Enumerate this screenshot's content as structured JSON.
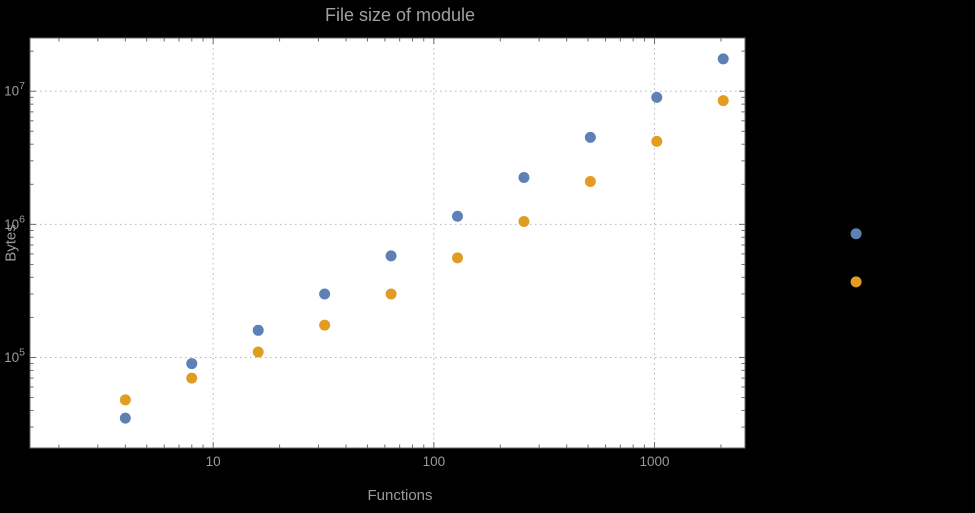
{
  "figure": {
    "background_color": "#000000"
  },
  "chart_data": {
    "type": "scatter",
    "title": "File size of module",
    "xlabel": "Functions",
    "ylabel": "Bytes",
    "x_scale": "log10",
    "y_scale": "log10",
    "grid": "dotted gray lines at powers of ten, on",
    "legend": "none",
    "plot_bg": "#ffffff",
    "frame_color": "#6a6a6a",
    "grid_color": "#b5b5b5",
    "tick_label_color": "#9a9a9a",
    "title_color": "#a0a0a0",
    "axis_label_color": "#9a9a9a",
    "point_radius": 5.5,
    "xlim_log10": [
      0.17,
      3.41
    ],
    "ylim_log10": [
      4.32,
      7.4
    ],
    "x_ticks": [
      {
        "value": 10,
        "label": "10"
      },
      {
        "value": 100,
        "label": "100"
      },
      {
        "value": 1000,
        "label": "1000"
      }
    ],
    "y_ticks": [
      {
        "value": 100000,
        "label": "10^5",
        "mantissa": "10",
        "exponent": "5"
      },
      {
        "value": 1000000,
        "label": "10^6",
        "mantissa": "10",
        "exponent": "6"
      },
      {
        "value": 10000000,
        "label": "10^7",
        "mantissa": "10",
        "exponent": "7"
      }
    ],
    "series": [
      {
        "name": "series-1-blue",
        "color": "#5e81b5",
        "x": [
          4,
          8,
          16,
          32,
          64,
          128,
          256,
          512,
          1024,
          2048,
          8192
        ],
        "y": [
          35000,
          90000,
          160000,
          300000,
          580000,
          1150000,
          2250000,
          4500000,
          9000000,
          17500000,
          850000
        ]
      },
      {
        "name": "series-2-orange",
        "color": "#e19c24",
        "x": [
          4,
          8,
          16,
          32,
          64,
          128,
          256,
          512,
          1024,
          2048,
          8192
        ],
        "y": [
          48000,
          70000,
          110000,
          175000,
          300000,
          560000,
          1050000,
          2100000,
          4200000,
          8500000,
          370000
        ]
      }
    ]
  }
}
